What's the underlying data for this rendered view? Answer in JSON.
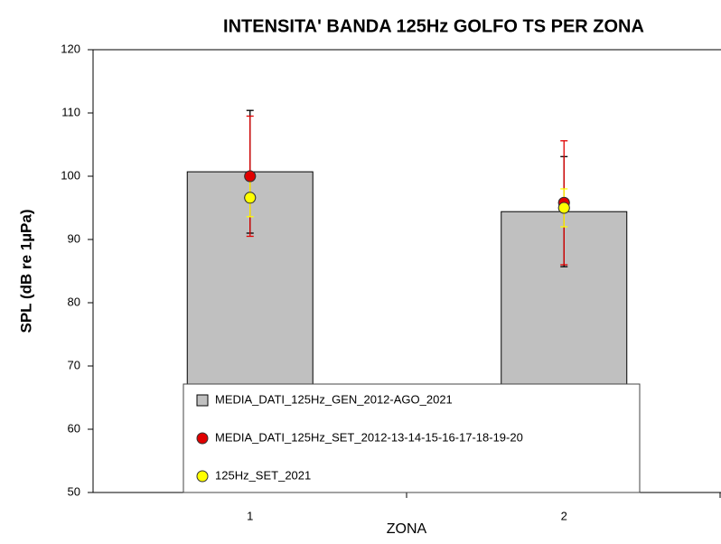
{
  "chart_data": {
    "type": "bar",
    "title": "INTENSITA' BANDA 125Hz GOLFO TS PER ZONA",
    "xlabel": "ZONA",
    "ylabel": "SPL (dB re 1µPa)",
    "categories": [
      "1",
      "2"
    ],
    "ylim": [
      50,
      120
    ],
    "yticks": [
      50,
      60,
      70,
      80,
      90,
      100,
      110,
      120
    ],
    "grid": false,
    "legend": "bottom",
    "series": [
      {
        "name": "MEDIA_DATI_125Hz_GEN_2012-AGO_2021",
        "kind": "bar",
        "color": "#c0c0c0",
        "values": [
          100.7,
          94.4
        ],
        "errors": [
          9.7,
          8.7
        ]
      },
      {
        "name": "MEDIA_DATI_125Hz_SET_2012-13-14-15-16-17-18-19-20",
        "kind": "point",
        "color": "#e00000",
        "values": [
          100,
          95.8
        ],
        "errors": [
          9.5,
          9.8
        ]
      },
      {
        "name": "125Hz_SET_2021",
        "kind": "point",
        "color": "#ffff00",
        "values": [
          96.6,
          95
        ],
        "errors": [
          3,
          3
        ]
      }
    ]
  }
}
